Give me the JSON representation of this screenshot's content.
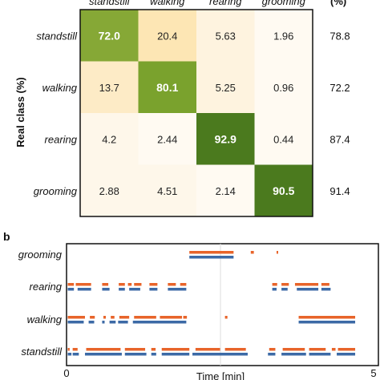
{
  "chart_data": [
    {
      "type": "heatmap",
      "ylabel": "Real class (%)",
      "columns": [
        "standstill",
        "walking",
        "rearing",
        "grooming"
      ],
      "rows": [
        "standstill",
        "walking",
        "rearing",
        "grooming"
      ],
      "values": [
        [
          "72.0",
          "20.4",
          "5.63",
          "1.96"
        ],
        [
          "13.7",
          "80.1",
          "5.25",
          "0.96"
        ],
        [
          "4.2",
          "2.44",
          "92.9",
          "0.44"
        ],
        [
          "2.88",
          "4.51",
          "2.14",
          "90.5"
        ]
      ],
      "side_header": "(%)",
      "side_values": [
        "78.8",
        "72.2",
        "87.4",
        "91.4"
      ],
      "colors": {
        "high": "#4a7a1f",
        "mid": "#7da52e",
        "low": "#fff7e6",
        "warm": "#fde7b8"
      }
    },
    {
      "type": "scatter",
      "panel_label": "b",
      "xlabel": "Time [min]",
      "xticks": [
        "0",
        "5"
      ],
      "xlim": [
        0,
        5
      ],
      "categories": [
        "grooming",
        "rearing",
        "walking",
        "standstill"
      ],
      "series_colors": {
        "predicted": "#e8642a",
        "real": "#3c6aa6"
      },
      "events": {
        "grooming": {
          "predicted": [
            [
              3.42,
              3.44
            ],
            [
              2.0,
              2.72
            ],
            [
              3.0,
              3.05
            ]
          ],
          "real": [
            [
              2.0,
              2.72
            ]
          ]
        },
        "rearing": {
          "predicted": [
            [
              0.02,
              0.12
            ],
            [
              0.15,
              0.4
            ],
            [
              0.58,
              0.68
            ],
            [
              0.85,
              0.95
            ],
            [
              1.0,
              1.06
            ],
            [
              1.1,
              1.22
            ],
            [
              1.35,
              1.48
            ],
            [
              1.65,
              1.78
            ],
            [
              1.85,
              1.95
            ],
            [
              3.35,
              3.43
            ],
            [
              3.5,
              3.62
            ],
            [
              3.72,
              4.1
            ],
            [
              4.15,
              4.28
            ]
          ],
          "real": [
            [
              0.02,
              0.12
            ],
            [
              0.18,
              0.4
            ],
            [
              0.58,
              0.7
            ],
            [
              0.85,
              0.95
            ],
            [
              1.02,
              1.2
            ],
            [
              1.35,
              1.48
            ],
            [
              1.65,
              1.95
            ],
            [
              3.35,
              3.42
            ],
            [
              3.5,
              3.6
            ],
            [
              3.75,
              4.1
            ],
            [
              4.15,
              4.3
            ]
          ]
        },
        "walking": {
          "predicted": [
            [
              0.02,
              0.3
            ],
            [
              0.38,
              0.46
            ],
            [
              0.6,
              0.64
            ],
            [
              0.72,
              0.78
            ],
            [
              0.86,
              1.02
            ],
            [
              1.1,
              1.46
            ],
            [
              1.52,
              1.88
            ],
            [
              1.9,
              1.96
            ],
            [
              2.58,
              2.62
            ],
            [
              3.78,
              4.7
            ]
          ],
          "real": [
            [
              0.02,
              0.28
            ],
            [
              0.36,
              0.45
            ],
            [
              0.58,
              0.62
            ],
            [
              0.7,
              0.8
            ],
            [
              0.84,
              1.0
            ],
            [
              1.08,
              1.95
            ],
            [
              3.78,
              4.7
            ]
          ]
        },
        "standstill": {
          "predicted": [
            [
              0.02,
              0.05
            ],
            [
              0.1,
              0.18
            ],
            [
              0.32,
              0.88
            ],
            [
              0.95,
              1.28
            ],
            [
              1.38,
              1.45
            ],
            [
              1.55,
              2.0
            ],
            [
              2.1,
              2.5
            ],
            [
              2.58,
              2.92
            ],
            [
              3.3,
              3.4
            ],
            [
              3.52,
              3.88
            ],
            [
              3.95,
              4.22
            ],
            [
              4.32,
              4.38
            ],
            [
              4.42,
              4.7
            ]
          ],
          "real": [
            [
              0.02,
              0.08
            ],
            [
              0.1,
              0.2
            ],
            [
              0.3,
              0.9
            ],
            [
              0.95,
              1.3
            ],
            [
              1.38,
              1.46
            ],
            [
              1.55,
              2.0
            ],
            [
              2.05,
              2.95
            ],
            [
              3.28,
              3.4
            ],
            [
              3.5,
              3.9
            ],
            [
              3.95,
              4.3
            ],
            [
              4.4,
              4.7
            ]
          ]
        }
      }
    }
  ]
}
